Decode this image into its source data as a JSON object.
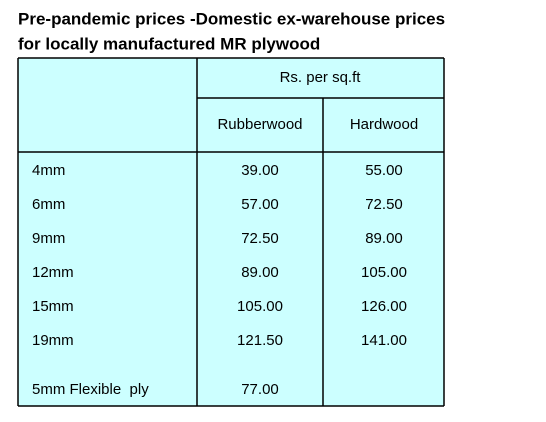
{
  "title": [
    "Pre-pandemic prices -Domestic ex-warehouse prices",
    "for locally manufactured MR plywood"
  ],
  "table": {
    "unit_header": "Rs. per sq.ft",
    "columns": [
      "Rubberwood",
      "Hardwood"
    ],
    "rows": [
      [
        "4mm",
        "39.00",
        "55.00"
      ],
      [
        "6mm",
        "57.00",
        "72.50"
      ],
      [
        "9mm",
        "72.50",
        "89.00"
      ],
      [
        "12mm",
        "89.00",
        "105.00"
      ],
      [
        "15mm",
        "105.00",
        "126.00"
      ],
      [
        "19mm",
        "121.50",
        "141.00"
      ],
      [
        "5mm Flexible  ply",
        "77.00"
      ]
    ]
  }
}
